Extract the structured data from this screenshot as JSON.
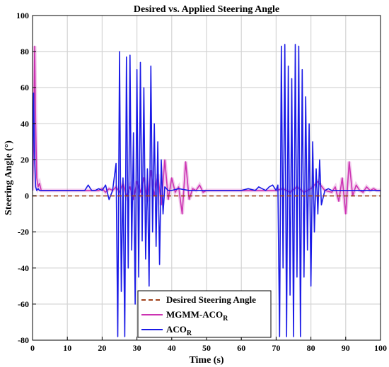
{
  "chart_data": {
    "type": "line",
    "title": "Desired vs. Applied Steering Angle",
    "xlabel": "Time (s)",
    "ylabel": "Steering Angle (°)",
    "xlim": [
      0,
      100
    ],
    "ylim": [
      -80,
      100
    ],
    "xticks": [
      0,
      10,
      20,
      30,
      40,
      50,
      60,
      70,
      80,
      90,
      100
    ],
    "yticks": [
      -80,
      -60,
      -40,
      -20,
      0,
      20,
      40,
      60,
      80,
      100
    ],
    "grid": true,
    "legend_position": "bottom-center",
    "series": [
      {
        "name": "Desired Steering Angle",
        "sub": "",
        "color": "#a0401a",
        "style": "dashed",
        "x": [
          0,
          100
        ],
        "y": [
          0,
          0
        ]
      },
      {
        "name": "MGMM-ACO",
        "sub": "R",
        "color": "#cc33b2",
        "style": "solid",
        "x": [
          0,
          0.3,
          0.6,
          0.9,
          1.2,
          1.6,
          2.0,
          2.5,
          3.0,
          5,
          10,
          15,
          19,
          20,
          21,
          22,
          23,
          24,
          25,
          26,
          27,
          28,
          29,
          30,
          31,
          32,
          33,
          34,
          35,
          36,
          37,
          38,
          39,
          40,
          41,
          42,
          43,
          44,
          45,
          46,
          47,
          48,
          49,
          50,
          60,
          65,
          70,
          72,
          74,
          76,
          78,
          80,
          82,
          84,
          86,
          87,
          88,
          89,
          90,
          91,
          92,
          93,
          94,
          95,
          96,
          97,
          98,
          99,
          100
        ],
        "y": [
          3,
          30,
          83,
          40,
          10,
          5,
          7,
          3,
          3,
          3,
          3,
          3,
          3,
          4,
          2,
          4,
          3,
          5,
          2,
          7,
          0,
          5,
          -2,
          8,
          2,
          10,
          -3,
          14,
          0,
          12,
          -5,
          20,
          -2,
          10,
          2,
          5,
          -10,
          19,
          -2,
          4,
          3,
          6,
          2,
          3,
          3,
          3,
          3,
          4,
          2,
          5,
          2,
          4,
          8,
          3,
          2,
          5,
          -3,
          10,
          -10,
          19,
          0,
          6,
          3,
          2,
          5,
          3,
          4,
          3,
          3
        ]
      },
      {
        "name": "ACO",
        "sub": "R",
        "color": "#1a1ae6",
        "style": "solid",
        "x": [
          0,
          0.3,
          0.6,
          0.9,
          1.2,
          1.6,
          2.0,
          2.5,
          3,
          5,
          10,
          15,
          16,
          17,
          18,
          19,
          20,
          21,
          22,
          23,
          24,
          24.5,
          25,
          25.5,
          26,
          26.5,
          27,
          27.5,
          28,
          28.5,
          29,
          29.5,
          30,
          30.5,
          31,
          31.5,
          32,
          32.5,
          33,
          33.5,
          34,
          34.5,
          35,
          35.5,
          36,
          36.5,
          37,
          37.5,
          38,
          38.5,
          39,
          40,
          42,
          45,
          50,
          55,
          60,
          62,
          64,
          65,
          66,
          67,
          68,
          69,
          70,
          70.5,
          71,
          71.5,
          72,
          72.5,
          73,
          73.5,
          74,
          74.5,
          75,
          75.5,
          76,
          76.5,
          77,
          77.5,
          78,
          78.5,
          79,
          79.5,
          80,
          80.5,
          81,
          81.5,
          82,
          82.5,
          83,
          84,
          85,
          86,
          88,
          90,
          95,
          100
        ],
        "y": [
          3,
          57,
          20,
          5,
          3,
          4,
          3,
          3,
          3,
          3,
          3,
          3,
          6,
          3,
          3,
          4,
          3,
          6,
          -2,
          3,
          18,
          -78,
          80,
          -53,
          10,
          -78,
          77,
          -40,
          78,
          -30,
          35,
          -60,
          70,
          -45,
          74,
          -25,
          60,
          -35,
          15,
          -50,
          72,
          -20,
          40,
          -28,
          30,
          -38,
          20,
          -10,
          5,
          4,
          3,
          3,
          4,
          3,
          3,
          3,
          3,
          4,
          3,
          5,
          4,
          3,
          5,
          6,
          3,
          6,
          -78,
          83,
          -40,
          84,
          -78,
          72,
          -55,
          65,
          -78,
          84,
          -45,
          83,
          -78,
          70,
          -45,
          55,
          -30,
          40,
          -50,
          30,
          -20,
          15,
          -10,
          20,
          -5,
          3,
          4,
          3,
          3,
          3,
          3,
          3
        ]
      }
    ]
  }
}
